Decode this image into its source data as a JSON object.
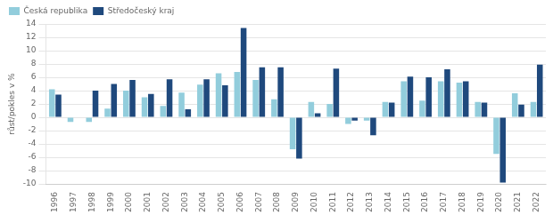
{
  "chart_data": {
    "type": "bar",
    "ylabel": "růst/pokles v %",
    "categories": [
      1996,
      1997,
      1998,
      1999,
      2000,
      2001,
      2002,
      2003,
      2004,
      2005,
      2006,
      2007,
      2008,
      2009,
      2010,
      2011,
      2012,
      2013,
      2014,
      2015,
      2016,
      2017,
      2018,
      2019,
      2020,
      2021,
      2022
    ],
    "series": [
      {
        "name": "Česká republika",
        "color": "#92CDDC",
        "values": [
          4.2,
          -0.7,
          -0.7,
          1.3,
          4.0,
          3.0,
          1.7,
          3.7,
          4.9,
          6.6,
          6.8,
          5.6,
          2.7,
          -4.8,
          2.3,
          2.0,
          -1.0,
          -0.5,
          2.3,
          5.4,
          2.5,
          5.4,
          5.2,
          2.3,
          -5.5,
          3.6,
          2.3
        ]
      },
      {
        "name": "Středočeský kraj",
        "color": "#1F497D",
        "values": [
          3.4,
          0.0,
          4.0,
          5.0,
          5.6,
          3.5,
          5.7,
          1.2,
          5.7,
          4.8,
          13.4,
          7.5,
          7.5,
          -6.2,
          0.6,
          7.3,
          -0.5,
          -2.7,
          2.2,
          6.1,
          6.0,
          7.2,
          5.4,
          2.2,
          -9.8,
          1.9,
          7.9
        ]
      }
    ],
    "ylim": [
      -10,
      14
    ],
    "yticks": [
      -10,
      -8,
      -6,
      -4,
      -2,
      0,
      2,
      4,
      6,
      8,
      10,
      12,
      14
    ],
    "grid": true,
    "legend": "upper left"
  }
}
